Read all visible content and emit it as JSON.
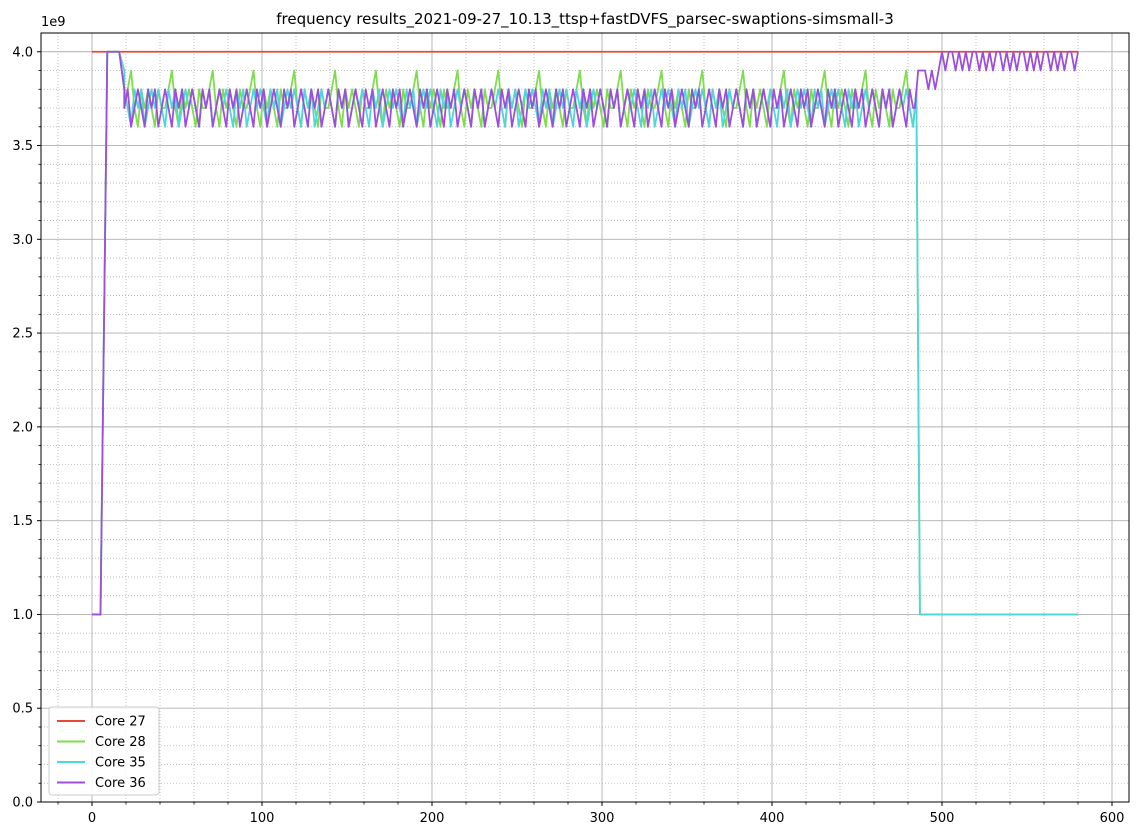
{
  "chart_data": {
    "type": "line",
    "title": "frequency results_2021-09-27_10.13_ttsp+fastDVFS_parsec-swaptions-simsmall-3",
    "xlabel": "",
    "ylabel": "",
    "y_offset_label": "1e9",
    "xlim": [
      -30,
      610
    ],
    "ylim": [
      0,
      4.1
    ],
    "x_ticks": [
      0,
      100,
      200,
      300,
      400,
      500,
      600
    ],
    "x_tick_labels": [
      "0",
      "100",
      "200",
      "300",
      "400",
      "500",
      "600"
    ],
    "y_ticks": [
      0,
      0.5,
      1.0,
      1.5,
      2.0,
      2.5,
      3.0,
      3.5,
      4.0
    ],
    "y_tick_labels": [
      "0.0",
      "0.5",
      "1.0",
      "1.5",
      "2.0",
      "2.5",
      "3.0",
      "3.5",
      "4.0"
    ],
    "grid": "major and minor",
    "legend_position": "lower-left",
    "series": [
      {
        "name": "Core 27",
        "color": "#e24a3b",
        "segments": [
          {
            "kind": "points",
            "x": [
              0,
              580
            ],
            "y": [
              4.0,
              4.0
            ]
          }
        ]
      },
      {
        "name": "Core 28",
        "color": "#7fdc4e",
        "segments": [
          {
            "kind": "points",
            "x": [
              0,
              5,
              9,
              12,
              16,
              19
            ],
            "y": [
              1.0,
              1.0,
              4.0,
              4.0,
              4.0,
              3.8
            ]
          },
          {
            "kind": "osc",
            "from": 19,
            "to": 485,
            "step": 2,
            "values": [
              3.7,
              3.8,
              3.9,
              3.7,
              3.6,
              3.8,
              3.7,
              3.8,
              3.7,
              3.6,
              3.8,
              3.7
            ]
          },
          {
            "kind": "points",
            "x": [
              485,
              487,
              580
            ],
            "y": [
              3.7,
              1.0,
              1.0
            ]
          }
        ]
      },
      {
        "name": "Core 35",
        "color": "#4fd6d9",
        "segments": [
          {
            "kind": "points",
            "x": [
              0,
              5,
              9,
              12,
              16,
              19
            ],
            "y": [
              1.0,
              1.0,
              4.0,
              4.0,
              4.0,
              3.9
            ]
          },
          {
            "kind": "osc",
            "from": 19,
            "to": 485,
            "step": 2,
            "values": [
              3.8,
              3.7,
              3.6,
              3.8,
              3.7,
              3.8,
              3.6,
              3.7,
              3.8,
              3.7
            ]
          },
          {
            "kind": "points",
            "x": [
              485,
              487,
              580
            ],
            "y": [
              3.7,
              1.0,
              1.0
            ]
          }
        ]
      },
      {
        "name": "Core 36",
        "color": "#9c4fd9",
        "segments": [
          {
            "kind": "points",
            "x": [
              0,
              5,
              9,
              12,
              16,
              19
            ],
            "y": [
              1.0,
              1.0,
              4.0,
              4.0,
              4.0,
              3.8
            ]
          },
          {
            "kind": "osc",
            "from": 19,
            "to": 484,
            "step": 2,
            "values": [
              3.7,
              3.8,
              3.6,
              3.7,
              3.8,
              3.7,
              3.6,
              3.8
            ]
          },
          {
            "kind": "points",
            "x": [
              484,
              486,
              490,
              492,
              494,
              496,
              498
            ],
            "y": [
              3.7,
              3.9,
              3.9,
              3.8,
              3.9,
              3.8,
              3.9
            ]
          },
          {
            "kind": "osc",
            "from": 498,
            "to": 580,
            "step": 2,
            "values": [
              3.9,
              4.0,
              3.9,
              4.0,
              4.0,
              3.9,
              4.0
            ]
          }
        ]
      }
    ]
  }
}
